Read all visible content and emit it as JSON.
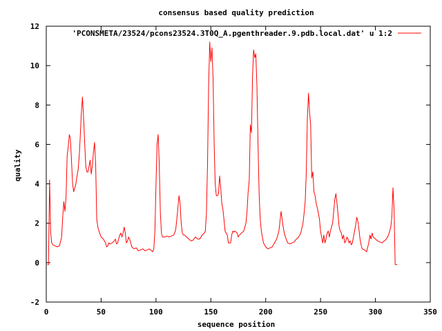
{
  "chart_data": {
    "type": "line",
    "title": "consensus based quality prediction",
    "xlabel": "sequence position",
    "ylabel": "quality",
    "xlim": [
      0,
      350
    ],
    "ylim": [
      -2,
      12
    ],
    "x_ticks": [
      0,
      50,
      100,
      150,
      200,
      250,
      300,
      350
    ],
    "y_ticks": [
      -2,
      0,
      2,
      4,
      6,
      8,
      10,
      12
    ],
    "grid": false,
    "legend_position": "top-right",
    "series": [
      {
        "name": "'PCONSMETA/23524/pcons23524.3T0Q_A.pgenthreader.9.pdb.local.dat' u 1:2",
        "color": "#ff0000",
        "points": [
          [
            1,
            -0.1
          ],
          [
            2,
            -0.1
          ],
          [
            3,
            4.2
          ],
          [
            4,
            1.5
          ],
          [
            5,
            1.0
          ],
          [
            6,
            0.9
          ],
          [
            8,
            0.85
          ],
          [
            10,
            0.8
          ],
          [
            12,
            0.85
          ],
          [
            14,
            1.3
          ],
          [
            15,
            2.3
          ],
          [
            16,
            3.1
          ],
          [
            17,
            2.6
          ],
          [
            18,
            3.3
          ],
          [
            19,
            5.4
          ],
          [
            20,
            5.9
          ],
          [
            21,
            6.5
          ],
          [
            22,
            6.3
          ],
          [
            23,
            5.2
          ],
          [
            24,
            4.0
          ],
          [
            25,
            3.6
          ],
          [
            26,
            3.8
          ],
          [
            27,
            4.0
          ],
          [
            28,
            4.4
          ],
          [
            29,
            4.7
          ],
          [
            30,
            5.4
          ],
          [
            31,
            6.4
          ],
          [
            32,
            7.6
          ],
          [
            33,
            8.4
          ],
          [
            34,
            7.4
          ],
          [
            35,
            6.1
          ],
          [
            36,
            4.9
          ],
          [
            37,
            4.6
          ],
          [
            38,
            4.6
          ],
          [
            39,
            4.9
          ],
          [
            40,
            5.2
          ],
          [
            41,
            4.5
          ],
          [
            42,
            4.9
          ],
          [
            43,
            5.6
          ],
          [
            44,
            6.1
          ],
          [
            45,
            5.0
          ],
          [
            46,
            2.2
          ],
          [
            47,
            1.8
          ],
          [
            48,
            1.6
          ],
          [
            50,
            1.3
          ],
          [
            52,
            1.2
          ],
          [
            53,
            1.1
          ],
          [
            54,
            1.0
          ],
          [
            55,
            0.8
          ],
          [
            56,
            0.85
          ],
          [
            57,
            1.0
          ],
          [
            58,
            0.95
          ],
          [
            60,
            1.0
          ],
          [
            62,
            1.1
          ],
          [
            63,
            1.2
          ],
          [
            64,
            0.95
          ],
          [
            65,
            1.0
          ],
          [
            66,
            1.2
          ],
          [
            67,
            1.4
          ],
          [
            68,
            1.5
          ],
          [
            69,
            1.3
          ],
          [
            70,
            1.5
          ],
          [
            71,
            1.8
          ],
          [
            72,
            1.5
          ],
          [
            73,
            1.0
          ],
          [
            74,
            1.1
          ],
          [
            75,
            1.3
          ],
          [
            76,
            1.2
          ],
          [
            78,
            0.8
          ],
          [
            80,
            0.7
          ],
          [
            82,
            0.75
          ],
          [
            84,
            0.6
          ],
          [
            86,
            0.65
          ],
          [
            88,
            0.7
          ],
          [
            90,
            0.6
          ],
          [
            92,
            0.65
          ],
          [
            94,
            0.7
          ],
          [
            96,
            0.6
          ],
          [
            97,
            0.55
          ],
          [
            98,
            0.7
          ],
          [
            99,
            1.6
          ],
          [
            100,
            4.0
          ],
          [
            101,
            6.0
          ],
          [
            102,
            6.5
          ],
          [
            103,
            5.0
          ],
          [
            104,
            2.5
          ],
          [
            105,
            1.5
          ],
          [
            106,
            1.3
          ],
          [
            108,
            1.3
          ],
          [
            110,
            1.35
          ],
          [
            112,
            1.3
          ],
          [
            114,
            1.35
          ],
          [
            116,
            1.4
          ],
          [
            117,
            1.5
          ],
          [
            118,
            1.7
          ],
          [
            119,
            2.2
          ],
          [
            120,
            2.8
          ],
          [
            121,
            3.4
          ],
          [
            122,
            3.0
          ],
          [
            123,
            2.0
          ],
          [
            124,
            1.5
          ],
          [
            125,
            1.4
          ],
          [
            126,
            1.4
          ],
          [
            128,
            1.3
          ],
          [
            130,
            1.2
          ],
          [
            132,
            1.1
          ],
          [
            134,
            1.15
          ],
          [
            136,
            1.3
          ],
          [
            138,
            1.2
          ],
          [
            140,
            1.2
          ],
          [
            142,
            1.4
          ],
          [
            144,
            1.5
          ],
          [
            145,
            1.6
          ],
          [
            146,
            2.5
          ],
          [
            147,
            5.0
          ],
          [
            148,
            9.0
          ],
          [
            149,
            11.2
          ],
          [
            150,
            10.2
          ],
          [
            151,
            10.9
          ],
          [
            152,
            9.4
          ],
          [
            153,
            6.0
          ],
          [
            154,
            4.0
          ],
          [
            155,
            3.4
          ],
          [
            156,
            3.4
          ],
          [
            157,
            3.5
          ],
          [
            158,
            4.4
          ],
          [
            159,
            3.8
          ],
          [
            160,
            3.0
          ],
          [
            161,
            2.7
          ],
          [
            162,
            2.2
          ],
          [
            163,
            1.6
          ],
          [
            164,
            1.5
          ],
          [
            165,
            1.4
          ],
          [
            166,
            1.0
          ],
          [
            168,
            1.0
          ],
          [
            169,
            1.4
          ],
          [
            170,
            1.6
          ],
          [
            171,
            1.55
          ],
          [
            172,
            1.6
          ],
          [
            174,
            1.5
          ],
          [
            175,
            1.3
          ],
          [
            176,
            1.4
          ],
          [
            178,
            1.5
          ],
          [
            180,
            1.6
          ],
          [
            181,
            1.8
          ],
          [
            182,
            2.0
          ],
          [
            183,
            2.6
          ],
          [
            184,
            3.6
          ],
          [
            185,
            4.2
          ],
          [
            186,
            7.0
          ],
          [
            187,
            6.6
          ],
          [
            188,
            9.5
          ],
          [
            189,
            10.8
          ],
          [
            190,
            10.4
          ],
          [
            191,
            10.6
          ],
          [
            192,
            9.0
          ],
          [
            193,
            6.0
          ],
          [
            194,
            3.5
          ],
          [
            195,
            2.2
          ],
          [
            196,
            1.6
          ],
          [
            197,
            1.3
          ],
          [
            198,
            1.0
          ],
          [
            200,
            0.8
          ],
          [
            202,
            0.7
          ],
          [
            204,
            0.75
          ],
          [
            206,
            0.8
          ],
          [
            208,
            1.0
          ],
          [
            210,
            1.2
          ],
          [
            212,
            1.6
          ],
          [
            213,
            2.1
          ],
          [
            214,
            2.6
          ],
          [
            215,
            2.2
          ],
          [
            216,
            1.8
          ],
          [
            217,
            1.5
          ],
          [
            218,
            1.3
          ],
          [
            220,
            1.0
          ],
          [
            222,
            0.95
          ],
          [
            224,
            1.0
          ],
          [
            226,
            1.05
          ],
          [
            228,
            1.2
          ],
          [
            230,
            1.3
          ],
          [
            232,
            1.5
          ],
          [
            234,
            2.0
          ],
          [
            235,
            2.5
          ],
          [
            236,
            3.1
          ],
          [
            237,
            4.6
          ],
          [
            238,
            7.4
          ],
          [
            239,
            8.6
          ],
          [
            240,
            7.6
          ],
          [
            241,
            7.0
          ],
          [
            242,
            4.3
          ],
          [
            243,
            4.6
          ],
          [
            244,
            3.6
          ],
          [
            245,
            3.4
          ],
          [
            246,
            3.0
          ],
          [
            247,
            2.8
          ],
          [
            248,
            2.5
          ],
          [
            249,
            2.2
          ],
          [
            250,
            1.6
          ],
          [
            251,
            1.3
          ],
          [
            252,
            1.0
          ],
          [
            253,
            1.4
          ],
          [
            254,
            1.0
          ],
          [
            255,
            1.2
          ],
          [
            256,
            1.5
          ],
          [
            257,
            1.6
          ],
          [
            258,
            1.3
          ],
          [
            259,
            1.6
          ],
          [
            260,
            1.8
          ],
          [
            261,
            2.0
          ],
          [
            262,
            2.6
          ],
          [
            263,
            3.2
          ],
          [
            264,
            3.5
          ],
          [
            265,
            3.0
          ],
          [
            266,
            2.4
          ],
          [
            267,
            1.8
          ],
          [
            268,
            1.6
          ],
          [
            269,
            1.5
          ],
          [
            270,
            1.2
          ],
          [
            271,
            1.4
          ],
          [
            272,
            1.0
          ],
          [
            273,
            1.1
          ],
          [
            274,
            1.3
          ],
          [
            275,
            1.2
          ],
          [
            276,
            1.0
          ],
          [
            277,
            1.1
          ],
          [
            278,
            0.9
          ],
          [
            279,
            1.0
          ],
          [
            280,
            1.3
          ],
          [
            281,
            1.6
          ],
          [
            282,
            1.9
          ],
          [
            283,
            2.3
          ],
          [
            284,
            2.1
          ],
          [
            285,
            1.7
          ],
          [
            286,
            1.2
          ],
          [
            287,
            0.9
          ],
          [
            288,
            0.7
          ],
          [
            290,
            0.65
          ],
          [
            291,
            0.6
          ],
          [
            292,
            0.55
          ],
          [
            293,
            0.8
          ],
          [
            294,
            1.0
          ],
          [
            295,
            1.4
          ],
          [
            296,
            1.2
          ],
          [
            297,
            1.5
          ],
          [
            298,
            1.3
          ],
          [
            300,
            1.2
          ],
          [
            302,
            1.1
          ],
          [
            304,
            1.05
          ],
          [
            306,
            1.0
          ],
          [
            308,
            1.1
          ],
          [
            310,
            1.2
          ],
          [
            312,
            1.4
          ],
          [
            313,
            1.6
          ],
          [
            314,
            1.8
          ],
          [
            315,
            2.3
          ],
          [
            316,
            3.8
          ],
          [
            317,
            2.7
          ],
          [
            318,
            -0.1
          ],
          [
            320,
            -0.1
          ]
        ]
      }
    ]
  }
}
